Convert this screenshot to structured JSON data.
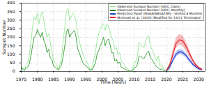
{
  "chart_data": {
    "type": "line",
    "x_label": "Time [Years]",
    "y_label": "Sunspot Number",
    "xlim": [
      1975,
      2032
    ],
    "xticks": [
      1975,
      1980,
      1985,
      1990,
      1995,
      2000,
      2005,
      2010,
      2015,
      2020,
      2025,
      2030
    ],
    "ylim": [
      0,
      400
    ],
    "yticks": [
      0,
      50,
      100,
      150,
      200,
      250,
      300,
      350,
      400
    ],
    "grid": true,
    "legend": "top-right",
    "series": [
      {
        "name": "Observed Sunspot Number (SIDC, Daily)",
        "color": "#86e386",
        "type": "line",
        "x": [
          1975,
          1975.5,
          1976,
          1976.5,
          1977,
          1977.5,
          1978,
          1978.5,
          1979,
          1979.5,
          1980,
          1980.5,
          1981,
          1981.5,
          1982,
          1982.5,
          1983,
          1983.5,
          1984,
          1984.5,
          1985,
          1985.5,
          1986,
          1986.5,
          1987,
          1987.5,
          1988,
          1988.5,
          1989,
          1989.5,
          1990,
          1990.5,
          1991,
          1991.5,
          1992,
          1992.5,
          1993,
          1993.5,
          1994,
          1994.5,
          1995,
          1995.5,
          1996,
          1996.5,
          1997,
          1997.5,
          1998,
          1998.5,
          1999,
          1999.5,
          2000,
          2000.5,
          2001,
          2001.5,
          2002,
          2002.5,
          2003,
          2003.5,
          2004,
          2004.5,
          2005,
          2005.5,
          2006,
          2006.5,
          2007,
          2007.5,
          2008,
          2008.5,
          2009,
          2009.5,
          2010,
          2010.5,
          2011,
          2011.5,
          2012,
          2012.5,
          2013,
          2013.5,
          2014,
          2014.5,
          2015,
          2015.5,
          2016,
          2016.5,
          2017,
          2017.5,
          2018,
          2018.5,
          2019,
          2019.5,
          2020,
          2020.5,
          2021
        ],
        "values": [
          35,
          5,
          0,
          40,
          50,
          90,
          170,
          260,
          320,
          300,
          340,
          280,
          330,
          350,
          300,
          240,
          200,
          220,
          170,
          120,
          60,
          50,
          40,
          0,
          45,
          80,
          180,
          260,
          350,
          370,
          300,
          320,
          340,
          330,
          290,
          220,
          180,
          140,
          110,
          80,
          70,
          50,
          30,
          0,
          25,
          70,
          110,
          180,
          220,
          250,
          270,
          280,
          240,
          275,
          270,
          230,
          200,
          180,
          130,
          140,
          100,
          110,
          60,
          50,
          40,
          20,
          15,
          0,
          0,
          15,
          45,
          60,
          90,
          170,
          160,
          150,
          140,
          170,
          200,
          210,
          150,
          130,
          110,
          80,
          60,
          90,
          30,
          40,
          20,
          0,
          0,
          25,
          40
        ]
      },
      {
        "name": "Observed Sunspot Number (SIDC, Monthly)",
        "color": "#138a13",
        "type": "line",
        "x": [
          1975,
          1975.5,
          1976,
          1976.5,
          1977,
          1977.5,
          1978,
          1978.5,
          1979,
          1979.5,
          1980,
          1980.5,
          1981,
          1981.5,
          1982,
          1982.5,
          1983,
          1983.5,
          1984,
          1984.5,
          1985,
          1985.5,
          1986,
          1986.5,
          1987,
          1987.5,
          1988,
          1988.5,
          1989,
          1989.5,
          1990,
          1990.5,
          1991,
          1991.5,
          1992,
          1992.5,
          1993,
          1993.5,
          1994,
          1994.5,
          1995,
          1995.5,
          1996,
          1996.5,
          1997,
          1997.5,
          1998,
          1998.5,
          1999,
          1999.5,
          2000,
          2000.5,
          2001,
          2001.5,
          2002,
          2002.5,
          2003,
          2003.5,
          2004,
          2004.5,
          2005,
          2005.5,
          2006,
          2006.5,
          2007,
          2007.5,
          2008,
          2008.5,
          2009,
          2009.5,
          2010,
          2010.5,
          2011,
          2011.5,
          2012,
          2012.5,
          2013,
          2013.5,
          2014,
          2014.5,
          2015,
          2015.5,
          2016,
          2016.5,
          2017,
          2017.5,
          2018,
          2018.5,
          2019,
          2019.5,
          2020,
          2020.5,
          2021
        ],
        "values": [
          20,
          15,
          12,
          18,
          25,
          45,
          90,
          150,
          200,
          210,
          245,
          220,
          200,
          230,
          180,
          160,
          110,
          130,
          80,
          70,
          30,
          25,
          15,
          12,
          20,
          40,
          90,
          150,
          230,
          250,
          200,
          220,
          230,
          240,
          200,
          130,
          110,
          80,
          55,
          40,
          35,
          25,
          12,
          10,
          10,
          30,
          50,
          100,
          120,
          150,
          170,
          200,
          150,
          180,
          190,
          160,
          110,
          110,
          60,
          70,
          45,
          55,
          25,
          20,
          15,
          10,
          5,
          3,
          2,
          5,
          20,
          25,
          40,
          90,
          90,
          80,
          75,
          90,
          110,
          120,
          80,
          70,
          55,
          40,
          25,
          20,
          10,
          15,
          8,
          3,
          2,
          8,
          15
        ]
      },
      {
        "name": "Prediction Panel (NOAA/NASA/ISES - Shifted 6 Months)",
        "color": "#1f3fd6",
        "type": "line",
        "x": [
          2020,
          2021,
          2022,
          2023,
          2024,
          2025,
          2026,
          2027,
          2028,
          2029,
          2030,
          2031
        ],
        "values": [
          5,
          25,
          65,
          100,
          115,
          112,
          95,
          70,
          45,
          28,
          15,
          8
        ],
        "lower": [
          2,
          18,
          52,
          85,
          100,
          98,
          82,
          58,
          36,
          20,
          9,
          3
        ],
        "upper": [
          8,
          32,
          78,
          115,
          130,
          126,
          108,
          82,
          54,
          36,
          21,
          13
        ]
      },
      {
        "name": "McIntosh et al. (2020) (Modified for 13/21 Terminator)",
        "color": "#e0202a",
        "type": "line",
        "x": [
          2020,
          2021,
          2022,
          2023,
          2024,
          2025,
          2026,
          2027,
          2028,
          2029,
          2030,
          2031
        ],
        "values": [
          5,
          35,
          100,
          165,
          185,
          180,
          150,
          110,
          70,
          40,
          22,
          12
        ],
        "lower": [
          3,
          25,
          78,
          135,
          155,
          150,
          122,
          88,
          54,
          28,
          14,
          6
        ],
        "upper": [
          8,
          45,
          122,
          195,
          215,
          210,
          178,
          132,
          86,
          52,
          30,
          18
        ]
      }
    ]
  }
}
